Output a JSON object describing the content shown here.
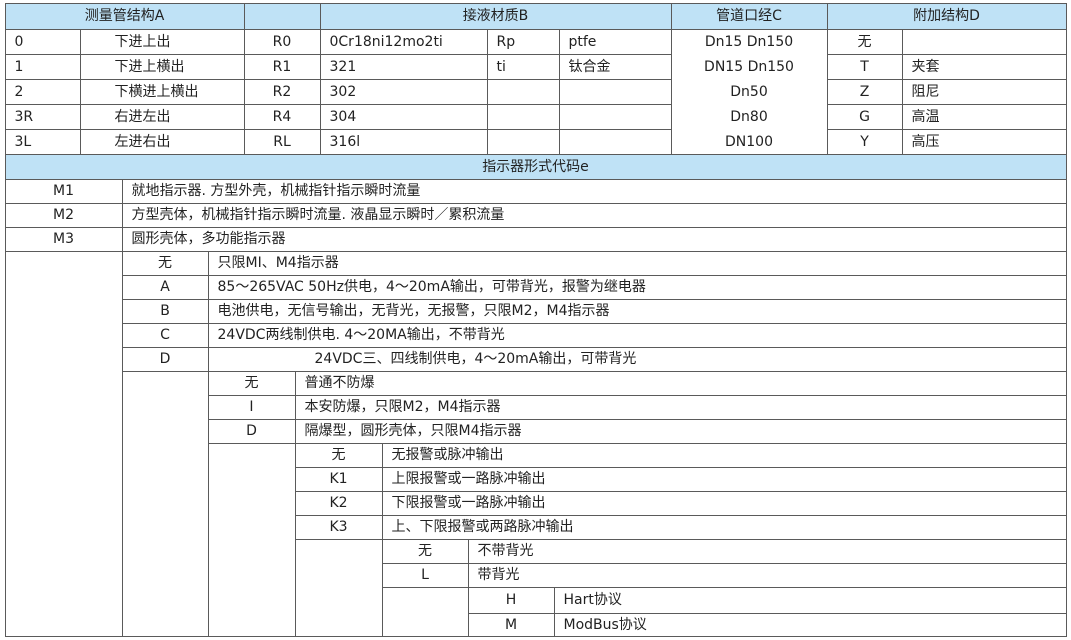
{
  "header": {
    "structure_a": "测量管结构A",
    "blank": "",
    "material_b": "接液材质B",
    "diameter_c": "管道口经C",
    "additional_d": "附加结构D"
  },
  "structure_a": [
    {
      "code": "0",
      "desc": "下进上出"
    },
    {
      "code": "1",
      "desc": "下进上横出"
    },
    {
      "code": "2",
      "desc": "下横进上横出"
    },
    {
      "code": "3R",
      "desc": "右进左出"
    },
    {
      "code": "3L",
      "desc": "左进右出"
    }
  ],
  "material_b": [
    {
      "code": "R0",
      "material": "0Cr18ni12mo2ti",
      "code2": "Rp",
      "material2": "ptfe"
    },
    {
      "code": "R1",
      "material": "321",
      "code2": "ti",
      "material2": "钛合金"
    },
    {
      "code": "R2",
      "material": "302",
      "code2": "",
      "material2": ""
    },
    {
      "code": "R4",
      "material": "304",
      "code2": "",
      "material2": ""
    },
    {
      "code": "RL",
      "material": "316l",
      "code2": "",
      "material2": ""
    }
  ],
  "diameter_c": [
    "Dn15   Dn150",
    "DN15   Dn150",
    "Dn50",
    "Dn80",
    "DN100"
  ],
  "additional_d": [
    {
      "code": "无",
      "desc": ""
    },
    {
      "code": "T",
      "desc": "夹套"
    },
    {
      "code": "Z",
      "desc": "阻尼"
    },
    {
      "code": "G",
      "desc": "高温"
    },
    {
      "code": "Y",
      "desc": "高压"
    }
  ],
  "indicator_title": "指示器形式代码e",
  "indicator": [
    {
      "code": "M1",
      "desc": "就地指示器. 方型外壳，机械指针指示瞬时流量"
    },
    {
      "code": "M2",
      "desc": "方型壳体，机械指针指示瞬时流量. 液晶显示瞬时／累积流量"
    },
    {
      "code": "M3",
      "desc": "圆形壳体，多功能指示器"
    }
  ],
  "power": [
    {
      "code": "无",
      "desc": "只限MI、M4指示器"
    },
    {
      "code": "A",
      "desc": "85～265VAC  50Hz供电，4～20mA输出，可带背光，报警为继电器"
    },
    {
      "code": "B",
      "desc": "电池供电，无信号输出，无背光，无报警，只限M2，M4指示器"
    },
    {
      "code": "C",
      "desc": "24VDC两线制供电. 4～20MA输出，不带背光"
    },
    {
      "code": "D",
      "desc": "24VDC三、四线制供电，4～20mA输出，可带背光"
    }
  ],
  "explosion": [
    {
      "code": "无",
      "desc": "普通不防爆"
    },
    {
      "code": "I",
      "desc": "本安防爆，只限M2，M4指示器"
    },
    {
      "code": "D",
      "desc": "隔爆型，圆形壳体，只限M4指示器"
    }
  ],
  "alarm": [
    {
      "code": "无",
      "desc": "无报警或脉冲输出"
    },
    {
      "code": "K1",
      "desc": "上限报警或一路脉冲输出"
    },
    {
      "code": "K2",
      "desc": "下限报警或一路脉冲输出"
    },
    {
      "code": "K3",
      "desc": "上、下限报警或两路脉冲输出"
    }
  ],
  "backlight": [
    {
      "code": "无",
      "desc": "不带背光"
    },
    {
      "code": "L",
      "desc": "带背光"
    }
  ],
  "protocol": [
    {
      "code": "H",
      "desc": "Hart协议"
    },
    {
      "code": "M",
      "desc": "ModBus协议"
    }
  ],
  "colors": {
    "header_blue": "#bfe2f6",
    "grid": "#5a5a5a"
  }
}
